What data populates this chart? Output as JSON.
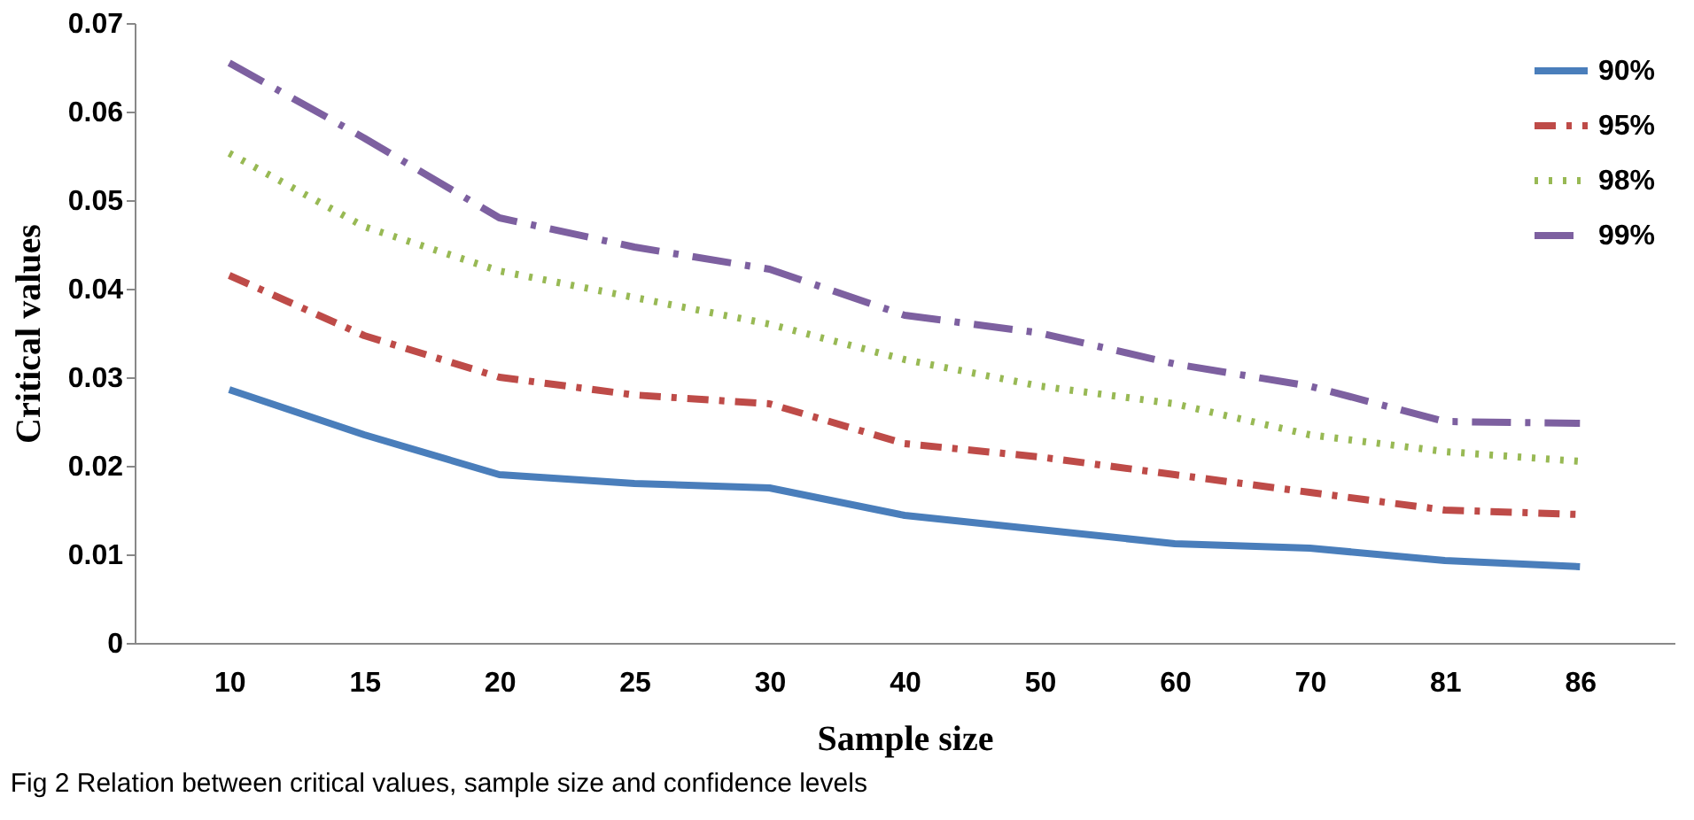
{
  "chart_data": {
    "type": "line",
    "xlabel": "Sample size",
    "ylabel": "Critical values",
    "annotations": [
      "Fig 2 Relation between critical values, sample size and confidence levels"
    ],
    "categories": [
      "10",
      "15",
      "20",
      "25",
      "30",
      "40",
      "50",
      "60",
      "70",
      "81",
      "86"
    ],
    "ylim": [
      0,
      0.07
    ],
    "yticks": [
      0,
      0.01,
      0.02,
      0.03,
      0.04,
      0.05,
      0.06,
      0.07
    ],
    "grid": false,
    "legend": "top right",
    "marker": "none",
    "series": [
      {
        "name": "90%",
        "color": "#4a7ebb",
        "line_style": "solid",
        "values": [
          0.0286,
          0.0235,
          0.019,
          0.018,
          0.0175,
          0.0144,
          0.0128,
          0.0112,
          0.0107,
          0.0093,
          0.0086
        ]
      },
      {
        "name": "95%",
        "color": "#be4b48",
        "line_style": "dashdot",
        "values": [
          0.0415,
          0.0347,
          0.03,
          0.028,
          0.027,
          0.0225,
          0.021,
          0.019,
          0.017,
          0.015,
          0.0145
        ]
      },
      {
        "name": "98%",
        "color": "#98b954",
        "line_style": "dotted",
        "values": [
          0.0553,
          0.047,
          0.042,
          0.039,
          0.036,
          0.032,
          0.029,
          0.027,
          0.0235,
          0.0216,
          0.0205
        ]
      },
      {
        "name": "99%",
        "color": "#7d60a0",
        "line_style": "longdashdot",
        "values": [
          0.0655,
          0.057,
          0.048,
          0.0447,
          0.0422,
          0.037,
          0.035,
          0.0315,
          0.029,
          0.025,
          0.0248
        ]
      }
    ]
  }
}
